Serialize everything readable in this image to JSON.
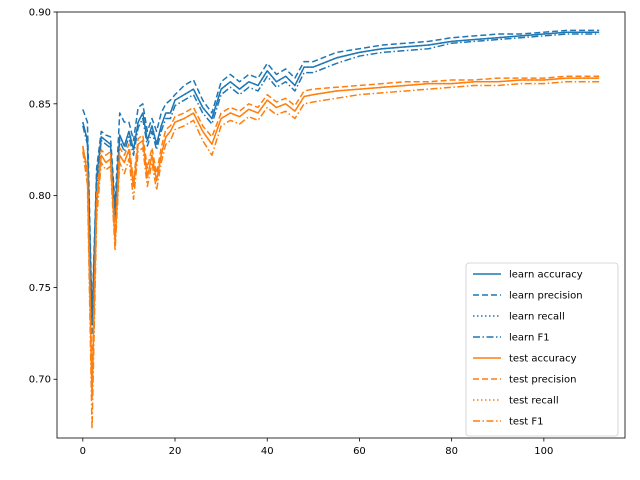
{
  "chart_data": {
    "type": "line",
    "title": "",
    "xlabel": "",
    "ylabel": "",
    "xlim": [
      -5.6,
      117.6
    ],
    "ylim": [
      0.668,
      0.9
    ],
    "x_ticks": [
      0,
      20,
      40,
      60,
      80,
      100
    ],
    "y_ticks": [
      0.7,
      0.75,
      0.8,
      0.85,
      0.9
    ],
    "x_tick_labels": [
      "0",
      "20",
      "40",
      "60",
      "80",
      "100"
    ],
    "y_tick_labels": [
      "0.70",
      "0.75",
      "0.80",
      "0.85",
      "0.90"
    ],
    "grid": false,
    "legend_placement": "lower-right",
    "x": [
      0,
      1,
      2,
      3,
      4,
      5,
      6,
      7,
      8,
      9,
      10,
      11,
      12,
      13,
      14,
      15,
      16,
      17,
      18,
      19,
      20,
      22,
      24,
      26,
      28,
      30,
      32,
      34,
      36,
      38,
      40,
      42,
      44,
      46,
      48,
      50,
      55,
      60,
      65,
      70,
      75,
      80,
      85,
      90,
      95,
      100,
      105,
      112
    ],
    "series": [
      {
        "name": "learn accuracy",
        "color": "#1f77b4",
        "dash": "solid",
        "values": [
          0.84,
          0.83,
          0.73,
          0.81,
          0.832,
          0.83,
          0.828,
          0.79,
          0.833,
          0.827,
          0.835,
          0.825,
          0.84,
          0.845,
          0.83,
          0.838,
          0.828,
          0.838,
          0.845,
          0.845,
          0.852,
          0.855,
          0.858,
          0.848,
          0.842,
          0.858,
          0.862,
          0.858,
          0.862,
          0.86,
          0.868,
          0.862,
          0.865,
          0.86,
          0.87,
          0.87,
          0.875,
          0.878,
          0.88,
          0.881,
          0.882,
          0.884,
          0.885,
          0.886,
          0.887,
          0.888,
          0.889,
          0.889
        ]
      },
      {
        "name": "learn precision",
        "color": "#1f77b4",
        "dash": "dashed",
        "values": [
          0.847,
          0.84,
          0.735,
          0.815,
          0.835,
          0.833,
          0.832,
          0.795,
          0.845,
          0.84,
          0.84,
          0.83,
          0.848,
          0.85,
          0.835,
          0.842,
          0.835,
          0.845,
          0.85,
          0.852,
          0.855,
          0.86,
          0.863,
          0.852,
          0.845,
          0.862,
          0.866,
          0.862,
          0.866,
          0.864,
          0.872,
          0.866,
          0.869,
          0.864,
          0.873,
          0.873,
          0.878,
          0.88,
          0.882,
          0.883,
          0.884,
          0.886,
          0.887,
          0.888,
          0.888,
          0.889,
          0.89,
          0.89
        ]
      },
      {
        "name": "learn recall",
        "color": "#1f77b4",
        "dash": "dotted",
        "values": [
          0.84,
          0.83,
          0.73,
          0.81,
          0.832,
          0.83,
          0.828,
          0.79,
          0.833,
          0.827,
          0.835,
          0.825,
          0.84,
          0.845,
          0.83,
          0.838,
          0.828,
          0.838,
          0.845,
          0.845,
          0.852,
          0.855,
          0.858,
          0.848,
          0.842,
          0.858,
          0.862,
          0.858,
          0.862,
          0.86,
          0.868,
          0.862,
          0.865,
          0.86,
          0.87,
          0.87,
          0.875,
          0.878,
          0.88,
          0.881,
          0.882,
          0.884,
          0.885,
          0.886,
          0.887,
          0.888,
          0.889,
          0.889
        ]
      },
      {
        "name": "learn F1",
        "color": "#1f77b4",
        "dash": "dashdot",
        "values": [
          0.838,
          0.828,
          0.725,
          0.805,
          0.83,
          0.828,
          0.826,
          0.787,
          0.83,
          0.824,
          0.832,
          0.822,
          0.837,
          0.842,
          0.827,
          0.835,
          0.825,
          0.835,
          0.842,
          0.842,
          0.849,
          0.852,
          0.855,
          0.845,
          0.839,
          0.855,
          0.859,
          0.855,
          0.859,
          0.857,
          0.865,
          0.859,
          0.862,
          0.857,
          0.867,
          0.867,
          0.872,
          0.876,
          0.878,
          0.879,
          0.88,
          0.883,
          0.884,
          0.885,
          0.886,
          0.887,
          0.888,
          0.888
        ]
      },
      {
        "name": "test accuracy",
        "color": "#ff7f0e",
        "dash": "solid",
        "values": [
          0.827,
          0.812,
          0.69,
          0.795,
          0.822,
          0.818,
          0.82,
          0.775,
          0.822,
          0.818,
          0.825,
          0.805,
          0.828,
          0.83,
          0.81,
          0.822,
          0.808,
          0.822,
          0.832,
          0.835,
          0.84,
          0.842,
          0.845,
          0.835,
          0.828,
          0.842,
          0.845,
          0.843,
          0.847,
          0.845,
          0.852,
          0.848,
          0.85,
          0.846,
          0.854,
          0.855,
          0.857,
          0.858,
          0.859,
          0.86,
          0.861,
          0.861,
          0.862,
          0.862,
          0.863,
          0.863,
          0.864,
          0.864
        ]
      },
      {
        "name": "test precision",
        "color": "#ff7f0e",
        "dash": "dashed",
        "values": [
          0.826,
          0.815,
          0.7,
          0.8,
          0.825,
          0.822,
          0.824,
          0.78,
          0.826,
          0.822,
          0.828,
          0.808,
          0.831,
          0.833,
          0.815,
          0.826,
          0.812,
          0.826,
          0.836,
          0.838,
          0.843,
          0.845,
          0.848,
          0.838,
          0.832,
          0.845,
          0.848,
          0.846,
          0.85,
          0.848,
          0.855,
          0.851,
          0.853,
          0.849,
          0.857,
          0.858,
          0.859,
          0.86,
          0.861,
          0.862,
          0.862,
          0.863,
          0.863,
          0.864,
          0.864,
          0.864,
          0.865,
          0.865
        ]
      },
      {
        "name": "test recall",
        "color": "#ff7f0e",
        "dash": "dotted",
        "values": [
          0.827,
          0.812,
          0.69,
          0.795,
          0.822,
          0.818,
          0.82,
          0.775,
          0.822,
          0.818,
          0.825,
          0.805,
          0.828,
          0.83,
          0.81,
          0.822,
          0.808,
          0.822,
          0.832,
          0.835,
          0.84,
          0.842,
          0.845,
          0.835,
          0.828,
          0.842,
          0.845,
          0.843,
          0.847,
          0.845,
          0.852,
          0.848,
          0.85,
          0.846,
          0.854,
          0.855,
          0.857,
          0.858,
          0.859,
          0.86,
          0.861,
          0.861,
          0.862,
          0.862,
          0.863,
          0.863,
          0.864,
          0.864
        ]
      },
      {
        "name": "test F1",
        "color": "#ff7f0e",
        "dash": "dashdot",
        "values": [
          0.824,
          0.806,
          0.673,
          0.788,
          0.818,
          0.814,
          0.816,
          0.77,
          0.818,
          0.812,
          0.82,
          0.798,
          0.824,
          0.826,
          0.805,
          0.818,
          0.803,
          0.818,
          0.828,
          0.83,
          0.836,
          0.838,
          0.841,
          0.83,
          0.822,
          0.838,
          0.841,
          0.839,
          0.843,
          0.841,
          0.848,
          0.844,
          0.846,
          0.842,
          0.85,
          0.851,
          0.853,
          0.855,
          0.856,
          0.857,
          0.858,
          0.859,
          0.86,
          0.86,
          0.861,
          0.861,
          0.862,
          0.862
        ]
      }
    ]
  }
}
